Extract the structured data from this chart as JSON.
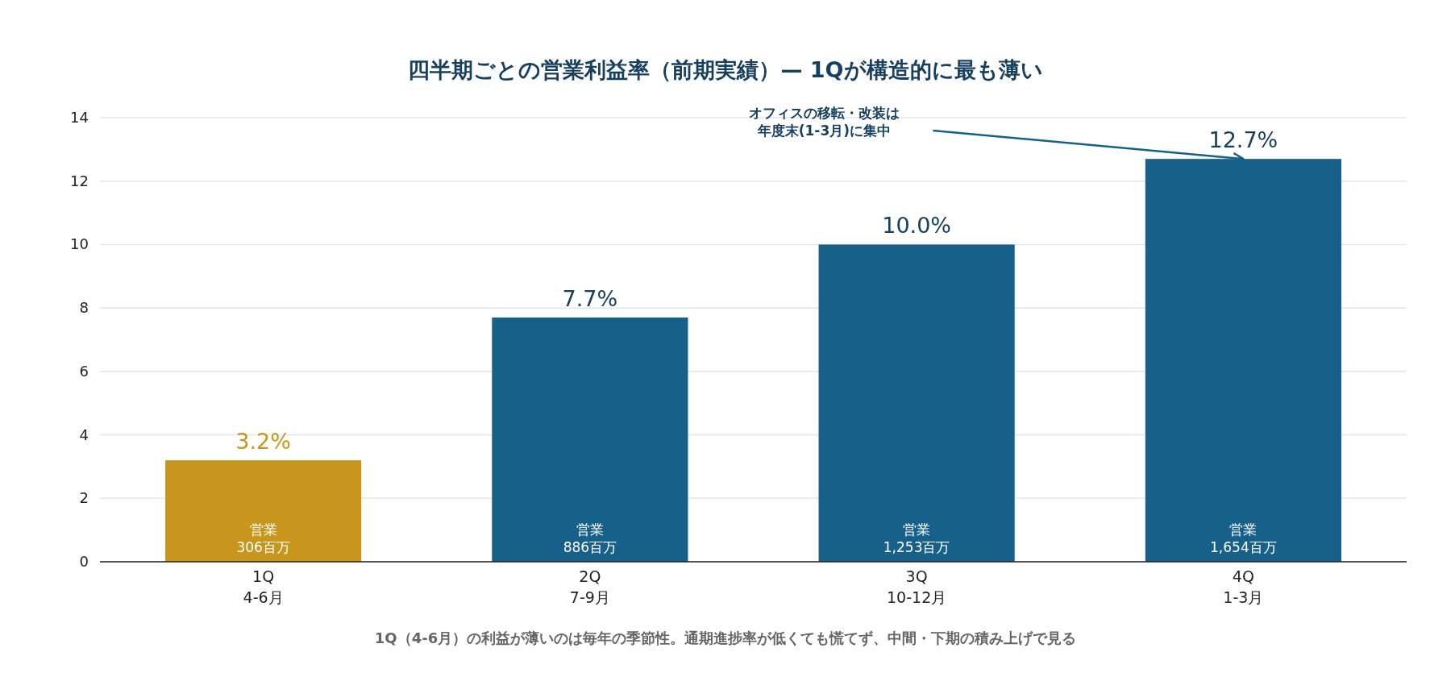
{
  "chart_data": {
    "type": "bar",
    "title": "四半期ごとの営業利益率（前期実績）— 1Qが構造的に最も薄い",
    "categories": [
      "1Q\n4-6月",
      "2Q\n7-9月",
      "3Q\n10-12月",
      "4Q\n1-3月"
    ],
    "values": [
      3.2,
      7.7,
      10.0,
      12.7
    ],
    "colors": [
      "#c8961c",
      "#17608a",
      "#17608a",
      "#17608a"
    ],
    "value_labels": [
      "3.2%",
      "7.7%",
      "10.0%",
      "12.7%"
    ],
    "ylim": [
      0,
      14
    ],
    "yticks": [
      0,
      2,
      4,
      6,
      8,
      10,
      12,
      14
    ],
    "grid": "y",
    "annotations": [
      "営業\n306百万",
      "営業\n886百万",
      "営業\n1,253百万",
      "営業\n1,654百万",
      "オフィスの移転・改装は年度末(1-3月)に集中",
      "1Q（4-6月）の利益が薄いのは毎年の季節性。通期進捗率が低くても慌てず、中間・下期の積み上げで見る"
    ]
  }
}
